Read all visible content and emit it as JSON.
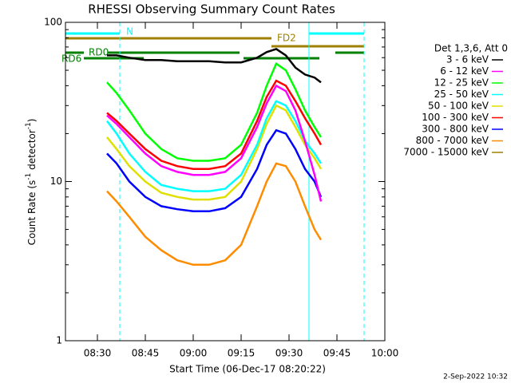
{
  "chart_data": {
    "type": "line",
    "title": "RHESSI Observing Summary Count Rates",
    "x_label": "Start Time (06-Dec-17 08:20:22)",
    "y_label_parts": [
      "Count Rate (s",
      "-1",
      " detector",
      "-1",
      ")"
    ],
    "legend_title": "Det 1,3,6, Att 0",
    "footer": "2-Sep-2022 10:32",
    "annotations": {
      "n": "N",
      "rd0": "RD0",
      "rd6": "RD6",
      "fd2": "FD2"
    },
    "log_y": true,
    "xlim": [
      0,
      100
    ],
    "xticks": [
      {
        "value": 10,
        "label": "08:30"
      },
      {
        "value": 25,
        "label": "08:45"
      },
      {
        "value": 40,
        "label": "09:00"
      },
      {
        "value": 55,
        "label": "09:15"
      },
      {
        "value": 70,
        "label": "09:30"
      },
      {
        "value": 85,
        "label": "09:45"
      },
      {
        "value": 100,
        "label": "10:00"
      }
    ],
    "ylim": [
      1,
      100
    ],
    "yticks": [
      1,
      10,
      100
    ],
    "yminorticks": [
      2,
      3,
      4,
      5,
      6,
      7,
      8,
      9,
      20,
      30,
      40,
      50,
      60,
      70,
      80,
      90
    ],
    "x": [
      13,
      16,
      20,
      25,
      30,
      35,
      40,
      45,
      50,
      55,
      60,
      63,
      66,
      69,
      72,
      75,
      78,
      80
    ],
    "series": [
      {
        "name": "3 - 6 keV",
        "color": "#000000",
        "values": [
          62,
          62,
          60,
          58,
          58,
          57,
          57,
          57,
          56,
          56,
          60,
          65,
          68,
          62,
          52,
          47,
          45,
          42
        ]
      },
      {
        "name": "6 - 12 keV",
        "color": "#ff00ff",
        "values": [
          26,
          23,
          19,
          15,
          12.5,
          11.5,
          11,
          11,
          11.5,
          14,
          22,
          31,
          40,
          37,
          28,
          18,
          11,
          7.5
        ]
      },
      {
        "name": "12 - 25 keV",
        "color": "#00ff00",
        "values": [
          42,
          36,
          28,
          20,
          16,
          14,
          13.5,
          13.5,
          14,
          17,
          27,
          40,
          55,
          50,
          38,
          28,
          22,
          19
        ]
      },
      {
        "name": "25 - 50 keV",
        "color": "#00ffff",
        "values": [
          24,
          20,
          15,
          11.5,
          9.5,
          9,
          8.7,
          8.7,
          9,
          11,
          17,
          25,
          32,
          30,
          24,
          18,
          15,
          13
        ]
      },
      {
        "name": "50 - 100 keV",
        "color": "#e0e000",
        "values": [
          19,
          16,
          12.5,
          10,
          8.5,
          8,
          7.7,
          7.7,
          8,
          10,
          16,
          23,
          30,
          28,
          22,
          17,
          14,
          12
        ]
      },
      {
        "name": "100 - 300 keV",
        "color": "#ff0000",
        "values": [
          27,
          24,
          20,
          16,
          13.5,
          12.5,
          12,
          12,
          12.5,
          15,
          24,
          34,
          43,
          40,
          32,
          25,
          20,
          17
        ]
      },
      {
        "name": "300 - 800 keV",
        "color": "#0000ff",
        "values": [
          15,
          13,
          10,
          8,
          7,
          6.7,
          6.5,
          6.5,
          6.8,
          8,
          12,
          17,
          21,
          20,
          16,
          12,
          10,
          8
        ]
      },
      {
        "name": "800 - 7000 keV",
        "color": "#ff8c00",
        "values": [
          8.7,
          7.5,
          6,
          4.5,
          3.7,
          3.2,
          3,
          3,
          3.2,
          4,
          7,
          10,
          13,
          12.5,
          10,
          7,
          5,
          4.3
        ]
      },
      {
        "name": "7000 - 15000 keV",
        "color": "#a08000",
        "values": [
          null,
          null,
          null,
          null,
          null,
          null,
          null,
          null,
          null,
          null,
          null,
          null,
          null,
          null,
          null,
          null,
          null,
          null
        ]
      }
    ]
  }
}
